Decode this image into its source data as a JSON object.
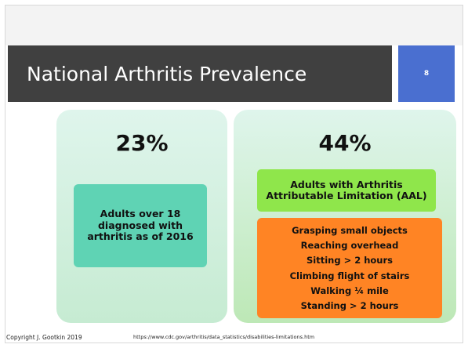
{
  "header": {
    "title": "National Arthritis Prevalence",
    "page_number": "8"
  },
  "left": {
    "stat": "23%",
    "description": "Adults over 18 diagnosed with arthritis as of 2016"
  },
  "right": {
    "stat": "44%",
    "heading": "Adults with Arthritis Attributable Limitation (AAL)",
    "items": [
      "Grasping small objects",
      "Reaching overhead",
      "Sitting > 2 hours",
      "Climbing flight of stairs",
      "Walking ¼ mile",
      "Standing > 2 hours"
    ]
  },
  "footer": {
    "copyright": "Copyright J. Gootkin 2019",
    "source": "https://www.cdc.gov/arthritis/data_statistics/disabilities-limitations.htm"
  }
}
